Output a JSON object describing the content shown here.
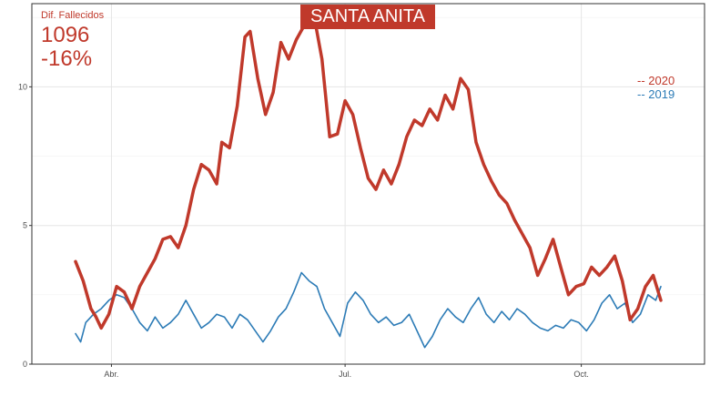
{
  "title": "SANTA ANITA",
  "annotation": {
    "label": "Dif. Fallecidos",
    "total": "1096",
    "pct": "-16%"
  },
  "colors": {
    "s2020": "#c0392b",
    "s2019": "#2c7bb6",
    "grid": "#e5e5e5",
    "axis": "#333333"
  },
  "chart_data": {
    "type": "line",
    "x_unit": "date",
    "xlim": [
      "2020-03-01",
      "2020-11-18"
    ],
    "ylim": [
      0,
      13
    ],
    "y_ticks": [
      0,
      5,
      10
    ],
    "x_ticks": [
      {
        "date": "2020-04-01",
        "label": "Abr."
      },
      {
        "date": "2020-07-01",
        "label": "Jul."
      },
      {
        "date": "2020-10-01",
        "label": "Oct."
      }
    ],
    "grid": true,
    "legend_position": "right",
    "series": [
      {
        "name": "-- 2020",
        "points": [
          [
            "2020-03-18",
            3.7
          ],
          [
            "2020-03-21",
            3.0
          ],
          [
            "2020-03-24",
            2.0
          ],
          [
            "2020-03-26",
            1.7
          ],
          [
            "2020-03-28",
            1.3
          ],
          [
            "2020-03-31",
            1.8
          ],
          [
            "2020-04-03",
            2.8
          ],
          [
            "2020-04-06",
            2.6
          ],
          [
            "2020-04-09",
            2.0
          ],
          [
            "2020-04-12",
            2.8
          ],
          [
            "2020-04-15",
            3.3
          ],
          [
            "2020-04-18",
            3.8
          ],
          [
            "2020-04-21",
            4.5
          ],
          [
            "2020-04-24",
            4.6
          ],
          [
            "2020-04-27",
            4.2
          ],
          [
            "2020-04-30",
            5.0
          ],
          [
            "2020-05-03",
            6.3
          ],
          [
            "2020-05-06",
            7.2
          ],
          [
            "2020-05-09",
            7.0
          ],
          [
            "2020-05-12",
            6.5
          ],
          [
            "2020-05-14",
            8.0
          ],
          [
            "2020-05-17",
            7.8
          ],
          [
            "2020-05-20",
            9.3
          ],
          [
            "2020-05-23",
            11.8
          ],
          [
            "2020-05-25",
            12.0
          ],
          [
            "2020-05-28",
            10.3
          ],
          [
            "2020-05-31",
            9.0
          ],
          [
            "2020-06-03",
            9.8
          ],
          [
            "2020-06-06",
            11.6
          ],
          [
            "2020-06-09",
            11.0
          ],
          [
            "2020-06-12",
            11.7
          ],
          [
            "2020-06-15",
            12.2
          ],
          [
            "2020-06-17",
            12.7
          ],
          [
            "2020-06-19",
            12.5
          ],
          [
            "2020-06-22",
            11.0
          ],
          [
            "2020-06-25",
            8.2
          ],
          [
            "2020-06-28",
            8.3
          ],
          [
            "2020-07-01",
            9.5
          ],
          [
            "2020-07-04",
            9.0
          ],
          [
            "2020-07-07",
            7.8
          ],
          [
            "2020-07-10",
            6.7
          ],
          [
            "2020-07-13",
            6.3
          ],
          [
            "2020-07-16",
            7.0
          ],
          [
            "2020-07-19",
            6.5
          ],
          [
            "2020-07-22",
            7.2
          ],
          [
            "2020-07-25",
            8.2
          ],
          [
            "2020-07-28",
            8.8
          ],
          [
            "2020-07-31",
            8.6
          ],
          [
            "2020-08-03",
            9.2
          ],
          [
            "2020-08-06",
            8.8
          ],
          [
            "2020-08-09",
            9.7
          ],
          [
            "2020-08-12",
            9.2
          ],
          [
            "2020-08-15",
            10.3
          ],
          [
            "2020-08-18",
            9.9
          ],
          [
            "2020-08-21",
            8.0
          ],
          [
            "2020-08-24",
            7.2
          ],
          [
            "2020-08-27",
            6.6
          ],
          [
            "2020-08-30",
            6.1
          ],
          [
            "2020-09-02",
            5.8
          ],
          [
            "2020-09-05",
            5.2
          ],
          [
            "2020-09-08",
            4.7
          ],
          [
            "2020-09-11",
            4.2
          ],
          [
            "2020-09-14",
            3.2
          ],
          [
            "2020-09-17",
            3.8
          ],
          [
            "2020-09-20",
            4.5
          ],
          [
            "2020-09-23",
            3.5
          ],
          [
            "2020-09-26",
            2.5
          ],
          [
            "2020-09-29",
            2.8
          ],
          [
            "2020-10-02",
            2.9
          ],
          [
            "2020-10-05",
            3.5
          ],
          [
            "2020-10-08",
            3.2
          ],
          [
            "2020-10-11",
            3.5
          ],
          [
            "2020-10-14",
            3.9
          ],
          [
            "2020-10-17",
            3.0
          ],
          [
            "2020-10-20",
            1.6
          ],
          [
            "2020-10-23",
            2.0
          ],
          [
            "2020-10-26",
            2.8
          ],
          [
            "2020-10-29",
            3.2
          ],
          [
            "2020-11-01",
            2.3
          ]
        ]
      },
      {
        "name": "-- 2019",
        "points": [
          [
            "2020-03-18",
            1.1
          ],
          [
            "2020-03-20",
            0.8
          ],
          [
            "2020-03-22",
            1.5
          ],
          [
            "2020-03-25",
            1.8
          ],
          [
            "2020-03-28",
            2.0
          ],
          [
            "2020-03-31",
            2.3
          ],
          [
            "2020-04-03",
            2.5
          ],
          [
            "2020-04-06",
            2.4
          ],
          [
            "2020-04-09",
            2.0
          ],
          [
            "2020-04-12",
            1.5
          ],
          [
            "2020-04-15",
            1.2
          ],
          [
            "2020-04-18",
            1.7
          ],
          [
            "2020-04-21",
            1.3
          ],
          [
            "2020-04-24",
            1.5
          ],
          [
            "2020-04-27",
            1.8
          ],
          [
            "2020-04-30",
            2.3
          ],
          [
            "2020-05-03",
            1.8
          ],
          [
            "2020-05-06",
            1.3
          ],
          [
            "2020-05-09",
            1.5
          ],
          [
            "2020-05-12",
            1.8
          ],
          [
            "2020-05-15",
            1.7
          ],
          [
            "2020-05-18",
            1.3
          ],
          [
            "2020-05-21",
            1.8
          ],
          [
            "2020-05-24",
            1.6
          ],
          [
            "2020-05-27",
            1.2
          ],
          [
            "2020-05-30",
            0.8
          ],
          [
            "2020-06-02",
            1.2
          ],
          [
            "2020-06-05",
            1.7
          ],
          [
            "2020-06-08",
            2.0
          ],
          [
            "2020-06-11",
            2.6
          ],
          [
            "2020-06-14",
            3.3
          ],
          [
            "2020-06-17",
            3.0
          ],
          [
            "2020-06-20",
            2.8
          ],
          [
            "2020-06-23",
            2.0
          ],
          [
            "2020-06-26",
            1.5
          ],
          [
            "2020-06-29",
            1.0
          ],
          [
            "2020-07-02",
            2.2
          ],
          [
            "2020-07-05",
            2.6
          ],
          [
            "2020-07-08",
            2.3
          ],
          [
            "2020-07-11",
            1.8
          ],
          [
            "2020-07-14",
            1.5
          ],
          [
            "2020-07-17",
            1.7
          ],
          [
            "2020-07-20",
            1.4
          ],
          [
            "2020-07-23",
            1.5
          ],
          [
            "2020-07-26",
            1.8
          ],
          [
            "2020-07-29",
            1.2
          ],
          [
            "2020-08-01",
            0.6
          ],
          [
            "2020-08-04",
            1.0
          ],
          [
            "2020-08-07",
            1.6
          ],
          [
            "2020-08-10",
            2.0
          ],
          [
            "2020-08-13",
            1.7
          ],
          [
            "2020-08-16",
            1.5
          ],
          [
            "2020-08-19",
            2.0
          ],
          [
            "2020-08-22",
            2.4
          ],
          [
            "2020-08-25",
            1.8
          ],
          [
            "2020-08-28",
            1.5
          ],
          [
            "2020-08-31",
            1.9
          ],
          [
            "2020-09-03",
            1.6
          ],
          [
            "2020-09-06",
            2.0
          ],
          [
            "2020-09-09",
            1.8
          ],
          [
            "2020-09-12",
            1.5
          ],
          [
            "2020-09-15",
            1.3
          ],
          [
            "2020-09-18",
            1.2
          ],
          [
            "2020-09-21",
            1.4
          ],
          [
            "2020-09-24",
            1.3
          ],
          [
            "2020-09-27",
            1.6
          ],
          [
            "2020-09-30",
            1.5
          ],
          [
            "2020-10-03",
            1.2
          ],
          [
            "2020-10-06",
            1.6
          ],
          [
            "2020-10-09",
            2.2
          ],
          [
            "2020-10-12",
            2.5
          ],
          [
            "2020-10-15",
            2.0
          ],
          [
            "2020-10-18",
            2.2
          ],
          [
            "2020-10-21",
            1.5
          ],
          [
            "2020-10-24",
            1.8
          ],
          [
            "2020-10-27",
            2.5
          ],
          [
            "2020-10-30",
            2.3
          ],
          [
            "2020-11-01",
            2.8
          ]
        ]
      }
    ]
  }
}
